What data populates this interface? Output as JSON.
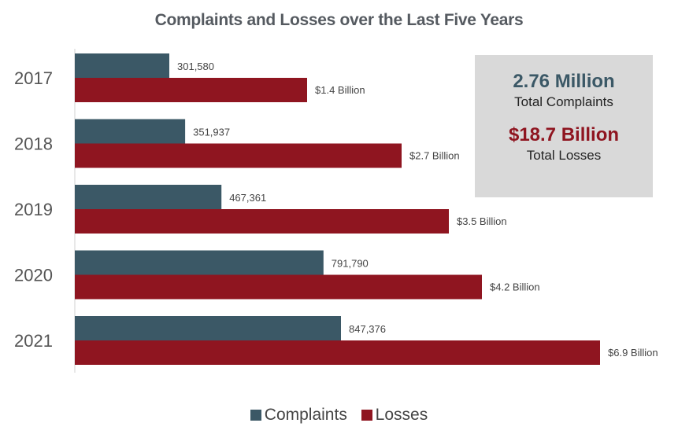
{
  "chart_data": {
    "type": "bar",
    "orientation": "horizontal",
    "title": "Complaints and Losses over the Last Five Years",
    "categories": [
      "2017",
      "2018",
      "2019",
      "2020",
      "2021"
    ],
    "series": [
      {
        "name": "Complaints",
        "color": "#3b5866",
        "values": [
          301580,
          351937,
          467361,
          791790,
          847376
        ],
        "labels": [
          "301,580",
          "351,937",
          "467,361",
          "791,790",
          "847,376"
        ]
      },
      {
        "name": "Losses",
        "color": "#8f1520",
        "values": [
          1.4,
          2.7,
          3.5,
          4.2,
          6.9
        ],
        "unit": "Billion USD",
        "labels": [
          "$1.4 Billion",
          "$2.7 Billion",
          "$3.5 Billion",
          "$4.2 Billion",
          "$6.9 Billion"
        ]
      }
    ],
    "xlabel": "",
    "ylabel": "",
    "grid": false,
    "legend_position": "bottom",
    "annotations": [
      {
        "value": "2.76 Million",
        "label": "Total Complaints",
        "color": "#3b5866"
      },
      {
        "value": "$18.7 Billion",
        "label": "Total Losses",
        "color": "#8f1520"
      }
    ]
  },
  "summary": {
    "complaints_value": "2.76 Million",
    "complaints_label": "Total Complaints",
    "losses_value": "$18.7 Billion",
    "losses_label": "Total Losses"
  },
  "legend": {
    "complaints": "Complaints",
    "losses": "Losses"
  }
}
